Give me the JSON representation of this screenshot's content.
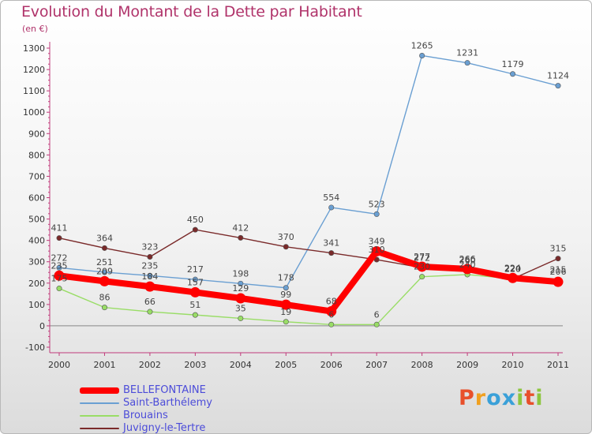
{
  "title": "Evolution du Montant de la Dette par Habitant",
  "subtitle": "(en €)",
  "logo": {
    "text": "Proxiti",
    "colors": [
      "#e8502b",
      "#f0a020",
      "#3aa0d8",
      "#3aa0d8",
      "#8dc63f",
      "#e8502b",
      "#8dc63f"
    ]
  },
  "chart_data": {
    "type": "line",
    "x": [
      "2000",
      "2001",
      "2002",
      "2003",
      "2004",
      "2005",
      "2006",
      "2007",
      "2008",
      "2009",
      "2010",
      "2011"
    ],
    "ylim": [
      -100,
      1300
    ],
    "yticks": [
      -100,
      0,
      100,
      200,
      300,
      400,
      500,
      600,
      700,
      800,
      900,
      1000,
      1100,
      1200,
      1300
    ],
    "grid": false,
    "legend_position": "bottom-left",
    "series": [
      {
        "name": "BELLEFONTAINE",
        "color": "#ff0000",
        "values": [
          235,
          209,
          184,
          157,
          129,
          99,
          68,
          349,
          277,
          266,
          224,
          206
        ]
      },
      {
        "name": "Saint-Barthélemy",
        "color": "#6a9fd2",
        "values": [
          272,
          251,
          235,
          217,
          198,
          178,
          554,
          523,
          1265,
          1231,
          1179,
          1124
        ]
      },
      {
        "name": "Brouains",
        "color": "#99dd66",
        "values": [
          175,
          86,
          66,
          51,
          35,
          19,
          6,
          6,
          230,
          240,
          220,
          215
        ]
      },
      {
        "name": "Juvigny-le-Tertre",
        "color": "#7a2a2a",
        "values": [
          411,
          364,
          323,
          450,
          412,
          370,
          341,
          310,
          272,
          260,
          220,
          315
        ]
      }
    ]
  }
}
